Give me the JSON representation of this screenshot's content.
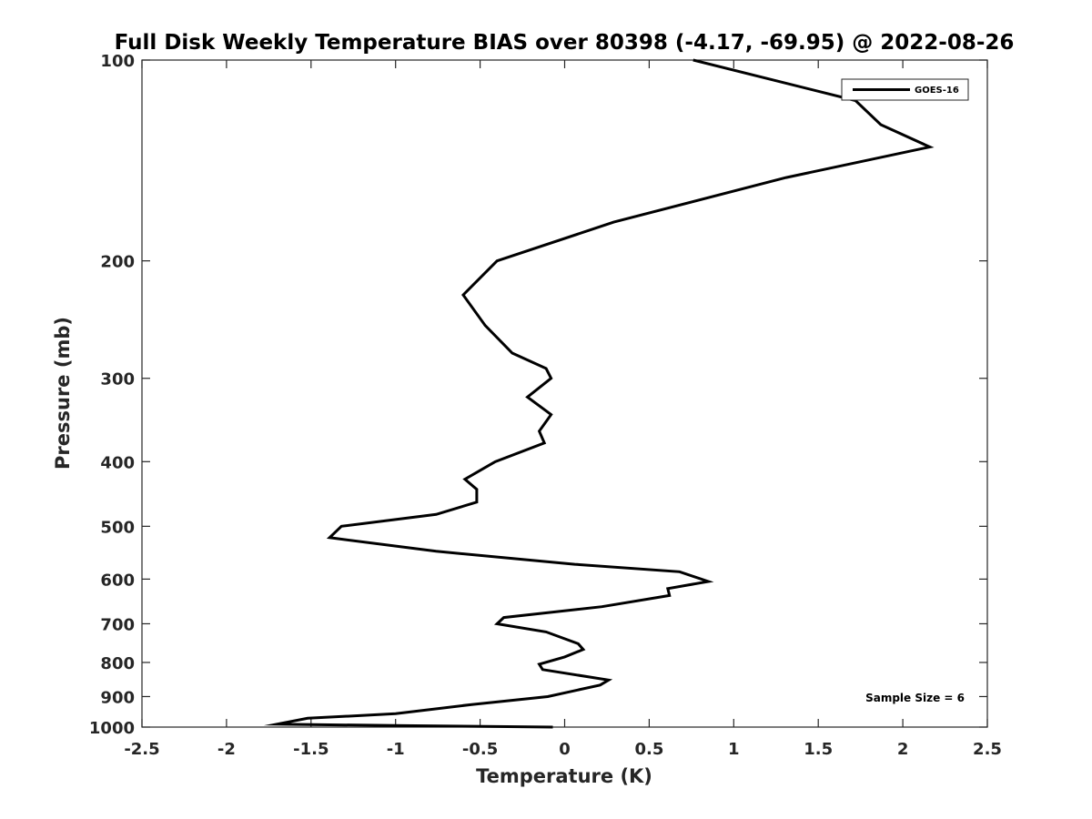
{
  "chart_data": {
    "type": "line",
    "title": "Full Disk Weekly Temperature BIAS over 80398 (-4.17, -69.95) @ 2022-08-26",
    "xlabel": "Temperature (K)",
    "ylabel": "Pressure (mb)",
    "xlim": [
      -2.5,
      2.5
    ],
    "ylim": [
      100,
      1000
    ],
    "y_scale": "log",
    "y_reversed": true,
    "grid": false,
    "legend_position": "top-right",
    "x_ticks": [
      -2.5,
      -2,
      -1.5,
      -1,
      -0.5,
      0,
      0.5,
      1,
      1.5,
      2,
      2.5
    ],
    "x_tick_labels": [
      "-2.5",
      "-2",
      "-1.5",
      "-1",
      "-0.5",
      "0",
      "0.5",
      "1",
      "1.5",
      "2",
      "2.5"
    ],
    "y_ticks": [
      100,
      200,
      300,
      400,
      500,
      600,
      700,
      800,
      900,
      1000
    ],
    "y_tick_labels": [
      "100",
      "200",
      "300",
      "400",
      "500",
      "600",
      "700",
      "800",
      "900",
      "1000"
    ],
    "annotation": "Sample Size = 6",
    "series": [
      {
        "name": "GOES-16",
        "color": "#000000",
        "points": [
          {
            "x": 0.76,
            "y": 100
          },
          {
            "x": 1.72,
            "y": 115
          },
          {
            "x": 1.87,
            "y": 125
          },
          {
            "x": 2.16,
            "y": 135
          },
          {
            "x": 1.31,
            "y": 150
          },
          {
            "x": 0.29,
            "y": 175
          },
          {
            "x": -0.4,
            "y": 200
          },
          {
            "x": -0.6,
            "y": 225
          },
          {
            "x": -0.47,
            "y": 250
          },
          {
            "x": -0.31,
            "y": 275
          },
          {
            "x": -0.11,
            "y": 290
          },
          {
            "x": -0.08,
            "y": 300
          },
          {
            "x": -0.22,
            "y": 320
          },
          {
            "x": -0.08,
            "y": 340
          },
          {
            "x": -0.15,
            "y": 360
          },
          {
            "x": -0.12,
            "y": 375
          },
          {
            "x": -0.41,
            "y": 400
          },
          {
            "x": -0.59,
            "y": 425
          },
          {
            "x": -0.52,
            "y": 440
          },
          {
            "x": -0.52,
            "y": 460
          },
          {
            "x": -0.76,
            "y": 480
          },
          {
            "x": -1.32,
            "y": 500
          },
          {
            "x": -1.39,
            "y": 520
          },
          {
            "x": -0.76,
            "y": 545
          },
          {
            "x": 0.06,
            "y": 570
          },
          {
            "x": 0.68,
            "y": 585
          },
          {
            "x": 0.85,
            "y": 605
          },
          {
            "x": 0.61,
            "y": 620
          },
          {
            "x": 0.62,
            "y": 635
          },
          {
            "x": 0.22,
            "y": 660
          },
          {
            "x": -0.36,
            "y": 685
          },
          {
            "x": -0.4,
            "y": 700
          },
          {
            "x": -0.11,
            "y": 720
          },
          {
            "x": 0.08,
            "y": 750
          },
          {
            "x": 0.11,
            "y": 765
          },
          {
            "x": 0.0,
            "y": 785
          },
          {
            "x": -0.15,
            "y": 805
          },
          {
            "x": -0.13,
            "y": 820
          },
          {
            "x": 0.26,
            "y": 850
          },
          {
            "x": 0.21,
            "y": 865
          },
          {
            "x": -0.1,
            "y": 900
          },
          {
            "x": -0.55,
            "y": 925
          },
          {
            "x": -1.0,
            "y": 955
          },
          {
            "x": -1.52,
            "y": 970
          },
          {
            "x": -1.7,
            "y": 990
          },
          {
            "x": -0.95,
            "y": 995
          },
          {
            "x": -0.07,
            "y": 1000
          }
        ]
      }
    ]
  }
}
